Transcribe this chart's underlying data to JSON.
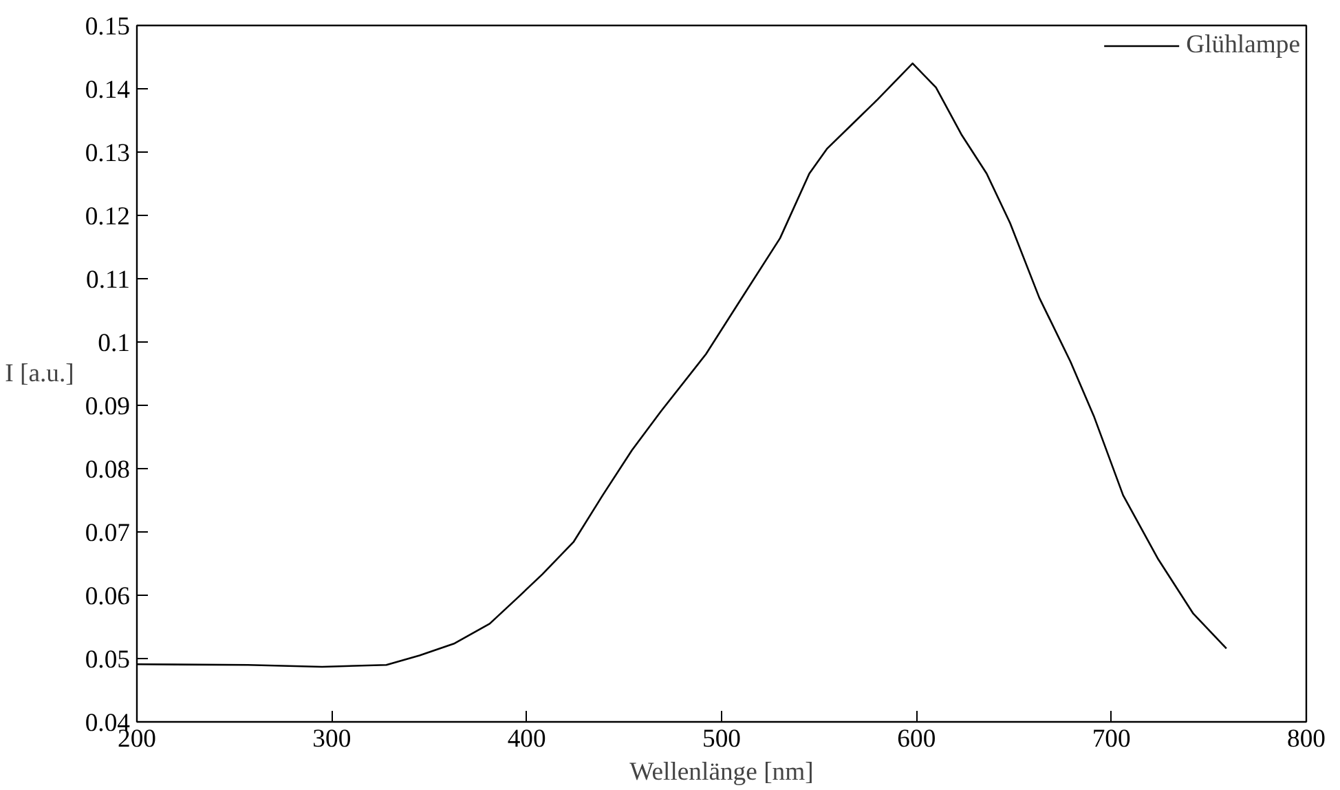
{
  "chart_data": {
    "type": "line",
    "xlabel": "Wellenlänge [nm]",
    "ylabel": "I [a.u.]",
    "xlim": [
      200,
      800
    ],
    "xticks": [
      200,
      300,
      400,
      500,
      600,
      700,
      800
    ],
    "ylim": [
      0.04,
      0.15
    ],
    "yticks": [
      0.04,
      0.05,
      0.06,
      0.07,
      0.08,
      0.09,
      0.1,
      0.11,
      0.12,
      0.13,
      0.14,
      0.15
    ],
    "grid": false,
    "legend": "top right",
    "line_style": "solid",
    "x": [
      200,
      257,
      295,
      328,
      345,
      363,
      381,
      396,
      408,
      424,
      439,
      454,
      469,
      492,
      509,
      530,
      545,
      554,
      567,
      580,
      598,
      610,
      623,
      636,
      648,
      663,
      679,
      691,
      706,
      724,
      742,
      759
    ],
    "series": [
      {
        "name": "Glühlampe",
        "color": "#000000",
        "values": [
          0.0491,
          0.049,
          0.0487,
          0.049,
          0.0505,
          0.0524,
          0.0555,
          0.0598,
          0.0633,
          0.0684,
          0.0758,
          0.0829,
          0.0891,
          0.0981,
          0.1063,
          0.1164,
          0.1266,
          0.1305,
          0.1344,
          0.1383,
          0.144,
          0.1402,
          0.1328,
          0.1266,
          0.1188,
          0.107,
          0.0969,
          0.0883,
          0.0758,
          0.0657,
          0.0571,
          0.0516
        ]
      }
    ]
  }
}
